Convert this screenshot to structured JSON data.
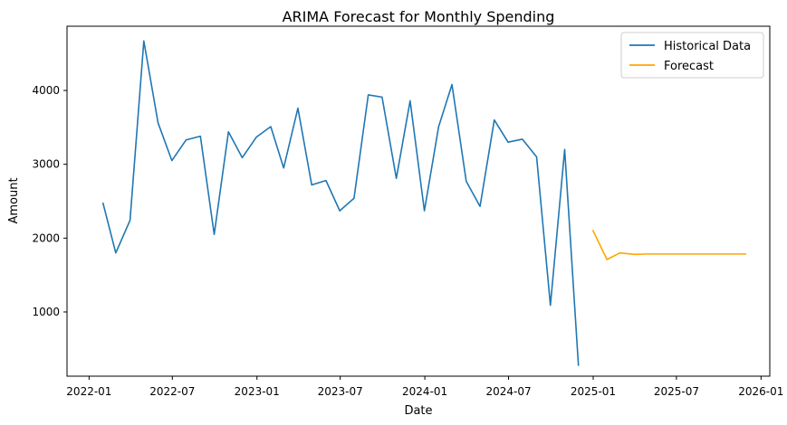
{
  "chart_data": {
    "type": "line",
    "title": "ARIMA Forecast for Monthly Spending",
    "xlabel": "Date",
    "ylabel": "Amount",
    "xlim": [
      "2021-11-14",
      "2026-01-20"
    ],
    "ylim": [
      130,
      4870
    ],
    "x_ticks": [
      {
        "date": "2022-01-01",
        "label": "2022-01"
      },
      {
        "date": "2022-07-01",
        "label": "2022-07"
      },
      {
        "date": "2023-01-01",
        "label": "2023-01"
      },
      {
        "date": "2023-07-01",
        "label": "2023-07"
      },
      {
        "date": "2024-01-01",
        "label": "2024-01"
      },
      {
        "date": "2024-07-01",
        "label": "2024-07"
      },
      {
        "date": "2025-01-01",
        "label": "2025-01"
      },
      {
        "date": "2025-07-01",
        "label": "2025-07"
      },
      {
        "date": "2026-01-01",
        "label": "2026-01"
      }
    ],
    "y_ticks": [
      {
        "value": 1000,
        "label": "1000"
      },
      {
        "value": 2000,
        "label": "2000"
      },
      {
        "value": 3000,
        "label": "3000"
      },
      {
        "value": 4000,
        "label": "4000"
      }
    ],
    "grid": false,
    "legend_position": "top-right",
    "series": [
      {
        "name": "Historical Data",
        "color": "#1f77b4",
        "x": [
          "2022-01-31",
          "2022-02-28",
          "2022-03-31",
          "2022-04-30",
          "2022-05-31",
          "2022-06-30",
          "2022-07-31",
          "2022-08-31",
          "2022-09-30",
          "2022-10-31",
          "2022-11-30",
          "2022-12-31",
          "2023-01-31",
          "2023-02-28",
          "2023-03-31",
          "2023-04-30",
          "2023-05-31",
          "2023-06-30",
          "2023-07-31",
          "2023-08-31",
          "2023-09-30",
          "2023-10-31",
          "2023-11-30",
          "2023-12-31",
          "2024-01-31",
          "2024-02-29",
          "2024-03-31",
          "2024-04-30",
          "2024-05-31",
          "2024-06-30",
          "2024-07-31",
          "2024-08-31",
          "2024-09-30",
          "2024-10-31",
          "2024-11-30"
        ],
        "values": [
          2480,
          1800,
          2240,
          4670,
          3560,
          3050,
          3330,
          3380,
          2050,
          3440,
          3090,
          3370,
          3510,
          2950,
          3760,
          2720,
          2780,
          2370,
          2540,
          3940,
          3910,
          2810,
          3860,
          2370,
          3510,
          4080,
          2770,
          2430,
          3600,
          3300,
          3340,
          3100,
          1090,
          3200,
          270
        ]
      },
      {
        "name": "Forecast",
        "color": "#ffa500",
        "x": [
          "2024-12-31",
          "2025-01-31",
          "2025-02-28",
          "2025-03-31",
          "2025-04-30",
          "2025-05-31",
          "2025-06-30",
          "2025-07-31",
          "2025-08-31",
          "2025-09-30",
          "2025-10-31",
          "2025-11-30"
        ],
        "values": [
          2110,
          1710,
          1800,
          1780,
          1785,
          1785,
          1785,
          1785,
          1785,
          1785,
          1785,
          1785
        ]
      }
    ]
  }
}
